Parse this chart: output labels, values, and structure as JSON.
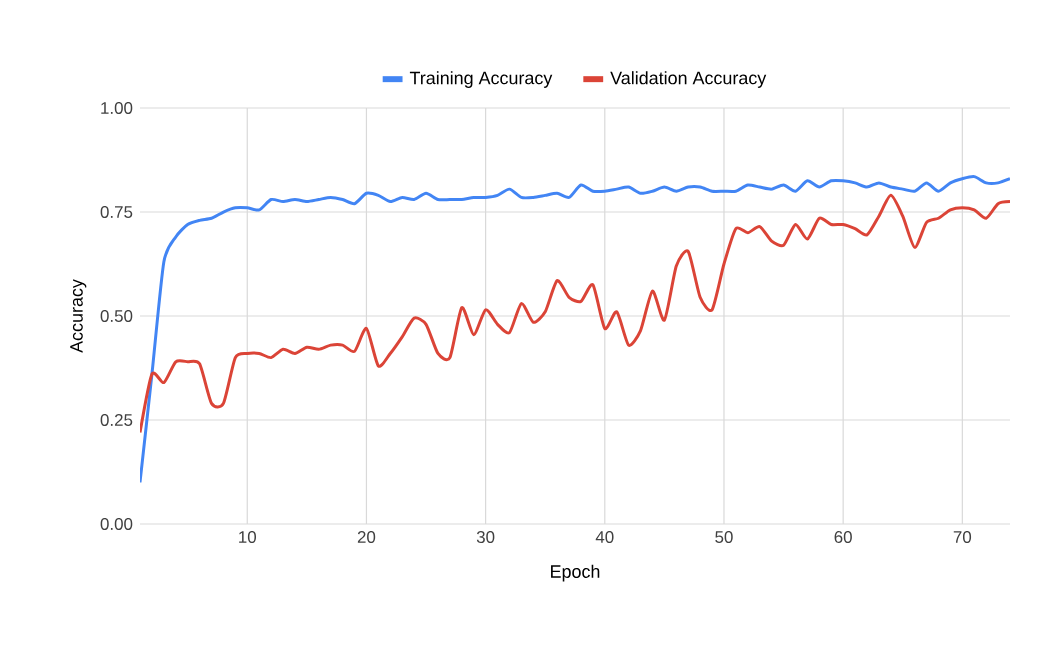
{
  "chart_data": {
    "type": "line",
    "xlabel": "Epoch",
    "ylabel": "Accuracy",
    "x": [
      1,
      2,
      3,
      4,
      5,
      6,
      7,
      8,
      9,
      10,
      11,
      12,
      13,
      14,
      15,
      16,
      17,
      18,
      19,
      20,
      21,
      22,
      23,
      24,
      25,
      26,
      27,
      28,
      29,
      30,
      31,
      32,
      33,
      34,
      35,
      36,
      37,
      38,
      39,
      40,
      41,
      42,
      43,
      44,
      45,
      46,
      47,
      48,
      49,
      50,
      51,
      52,
      53,
      54,
      55,
      56,
      57,
      58,
      59,
      60,
      61,
      62,
      63,
      64,
      65,
      66,
      67,
      68,
      69,
      70,
      71,
      72,
      73,
      74
    ],
    "series": [
      {
        "name": "Training Accuracy",
        "color": "#4285f4",
        "values": [
          0.1,
          0.36,
          0.63,
          0.69,
          0.72,
          0.73,
          0.735,
          0.75,
          0.76,
          0.76,
          0.755,
          0.78,
          0.775,
          0.78,
          0.775,
          0.78,
          0.785,
          0.78,
          0.77,
          0.795,
          0.79,
          0.775,
          0.785,
          0.78,
          0.795,
          0.78,
          0.78,
          0.78,
          0.785,
          0.785,
          0.79,
          0.805,
          0.785,
          0.785,
          0.79,
          0.795,
          0.785,
          0.815,
          0.8,
          0.8,
          0.805,
          0.81,
          0.795,
          0.8,
          0.81,
          0.8,
          0.81,
          0.81,
          0.8,
          0.8,
          0.8,
          0.815,
          0.81,
          0.805,
          0.815,
          0.8,
          0.825,
          0.81,
          0.825,
          0.825,
          0.82,
          0.81,
          0.82,
          0.81,
          0.805,
          0.8,
          0.82,
          0.8,
          0.82,
          0.83,
          0.835,
          0.82,
          0.82,
          0.83
        ]
      },
      {
        "name": "Validation Accuracy",
        "color": "#db4437",
        "values": [
          0.22,
          0.36,
          0.34,
          0.39,
          0.39,
          0.385,
          0.29,
          0.29,
          0.4,
          0.41,
          0.41,
          0.4,
          0.42,
          0.41,
          0.425,
          0.42,
          0.43,
          0.43,
          0.415,
          0.47,
          0.38,
          0.41,
          0.45,
          0.495,
          0.48,
          0.41,
          0.4,
          0.52,
          0.455,
          0.515,
          0.48,
          0.46,
          0.53,
          0.485,
          0.51,
          0.585,
          0.545,
          0.535,
          0.575,
          0.47,
          0.51,
          0.43,
          0.465,
          0.56,
          0.49,
          0.62,
          0.655,
          0.545,
          0.515,
          0.625,
          0.71,
          0.7,
          0.715,
          0.68,
          0.67,
          0.72,
          0.685,
          0.735,
          0.72,
          0.72,
          0.71,
          0.695,
          0.74,
          0.79,
          0.74,
          0.665,
          0.725,
          0.735,
          0.755,
          0.76,
          0.755,
          0.735,
          0.77,
          0.775
        ]
      }
    ],
    "xlim": [
      1,
      74
    ],
    "xticks": [
      10,
      20,
      30,
      40,
      50,
      60,
      70
    ],
    "ylim": [
      0,
      1
    ],
    "yticks": [
      {
        "value": 0,
        "label": "0.00"
      },
      {
        "value": 0.25,
        "label": "0.25"
      },
      {
        "value": 0.5,
        "label": "0.50"
      },
      {
        "value": 0.75,
        "label": "0.75"
      },
      {
        "value": 1,
        "label": "1.00"
      }
    ],
    "grid": true,
    "legend": "top",
    "marker": "none",
    "line_style": "solid"
  }
}
